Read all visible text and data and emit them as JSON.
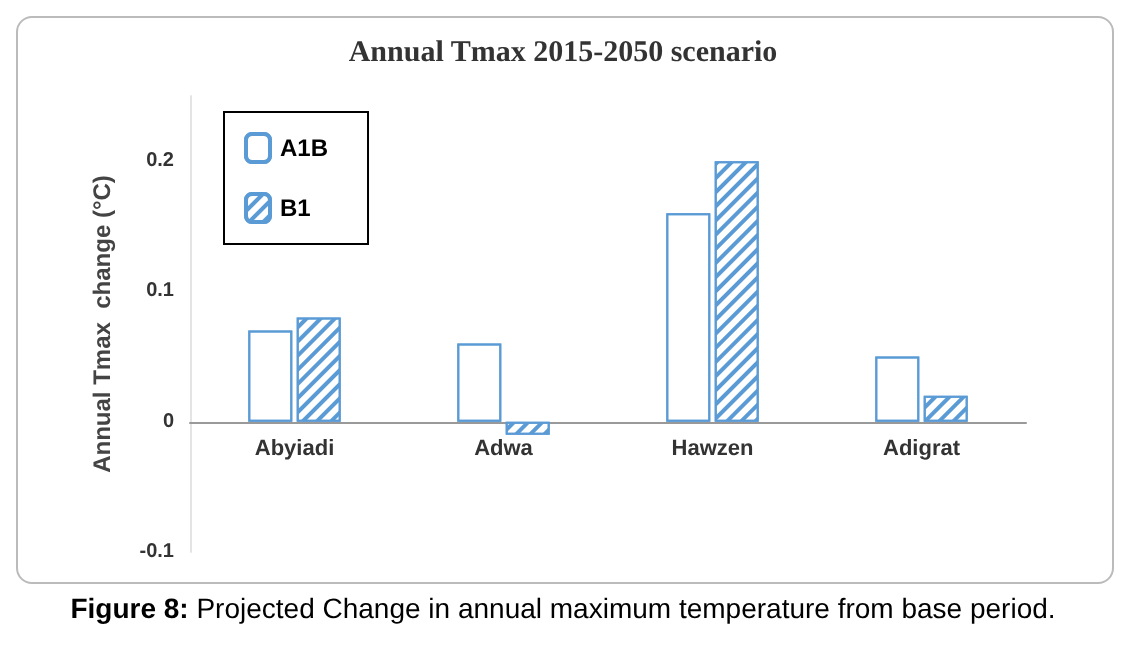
{
  "chart_data": {
    "type": "bar",
    "title": "Annual Tmax 2015-2050 scenario",
    "ylabel": "Annual Tmax  change (°C)",
    "categories": [
      "Abyiadi",
      "Adwa",
      "Hawzen",
      "Adigrat"
    ],
    "series": [
      {
        "name": "A1B",
        "color": "#5b9bd5",
        "values": [
          0.07,
          0.06,
          0.16,
          0.05
        ]
      },
      {
        "name": "B1",
        "color": "#5b9bd5",
        "values": [
          0.08,
          -0.01,
          0.2,
          0.02
        ]
      }
    ],
    "ylim": [
      -0.1,
      0.25
    ],
    "yticks": [
      -0.1,
      0,
      0.1,
      0.2
    ],
    "legend": "top left",
    "annotations": [
      "Figure 8: Projected Change in annual maximum temperature from base period."
    ]
  }
}
